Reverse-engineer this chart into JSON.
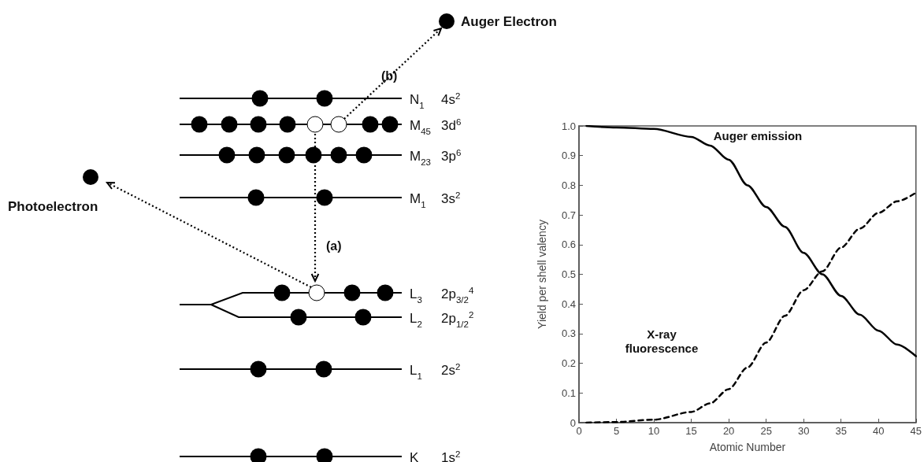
{
  "chart_data": {
    "type": "line",
    "xlabel": "Atomic Number",
    "ylabel": "Yield per shell valency",
    "x": [
      1,
      5,
      10,
      15,
      17.5,
      20,
      22.5,
      25,
      27.5,
      30,
      32.5,
      35,
      37.5,
      40,
      42.5,
      45
    ],
    "series": [
      {
        "color": "#000000",
        "line_style": "solid",
        "values": [
          1.0,
          0.995,
          0.99,
          0.963,
          0.934,
          0.886,
          0.8,
          0.727,
          0.66,
          0.572,
          0.5,
          0.427,
          0.364,
          0.31,
          0.263,
          0.224
        ]
      },
      {
        "color": "#000000",
        "line_style": "dashed",
        "values": [
          0,
          0.002,
          0.01,
          0.036,
          0.065,
          0.113,
          0.186,
          0.27,
          0.36,
          0.446,
          0.51,
          0.59,
          0.654,
          0.707,
          0.746,
          0.775
        ]
      }
    ],
    "xlim": [
      0,
      45
    ],
    "xticks": [
      0,
      5,
      10,
      15,
      20,
      25,
      30,
      35,
      40,
      45
    ],
    "ylim": [
      0,
      1
    ],
    "yticks": [
      0,
      0.1,
      0.2,
      0.3,
      0.4,
      0.5,
      0.6,
      0.7,
      0.8,
      0.9,
      {
        "value": 1,
        "label": "1.0"
      }
    ],
    "grid": false,
    "marker": "none",
    "annotations": [
      "Auger emission",
      "X-ray\nfluorescence",
      "Auger Electron",
      "Photoelectron",
      "(a)",
      "(b)",
      "N$_{1}$",
      "4s$^{2}$",
      "M$_{45}$",
      "3d$^{6}$",
      "M$_{23}$",
      "3p$^{6}$",
      "M$_{1}$",
      "3s$^{2}$",
      "L$_{3}$",
      "2p$_{3/2}$$^{4}$",
      "L$_{2}$",
      "2p$_{1/2}$$^{2}$",
      "L$_{1}$",
      "2s$^{2}$",
      "K",
      "1s$^{2}$"
    ]
  }
}
